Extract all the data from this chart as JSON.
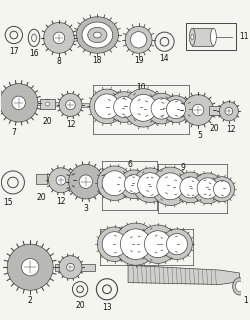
{
  "bg_color": "#f5f5f0",
  "line_color": "#444444",
  "text_color": "#111111",
  "font_size": 5.5,
  "gear_fill": "#c8c8c4",
  "gear_fill2": "#b8b8b4",
  "shaft_fill": "#d0d0cc"
}
